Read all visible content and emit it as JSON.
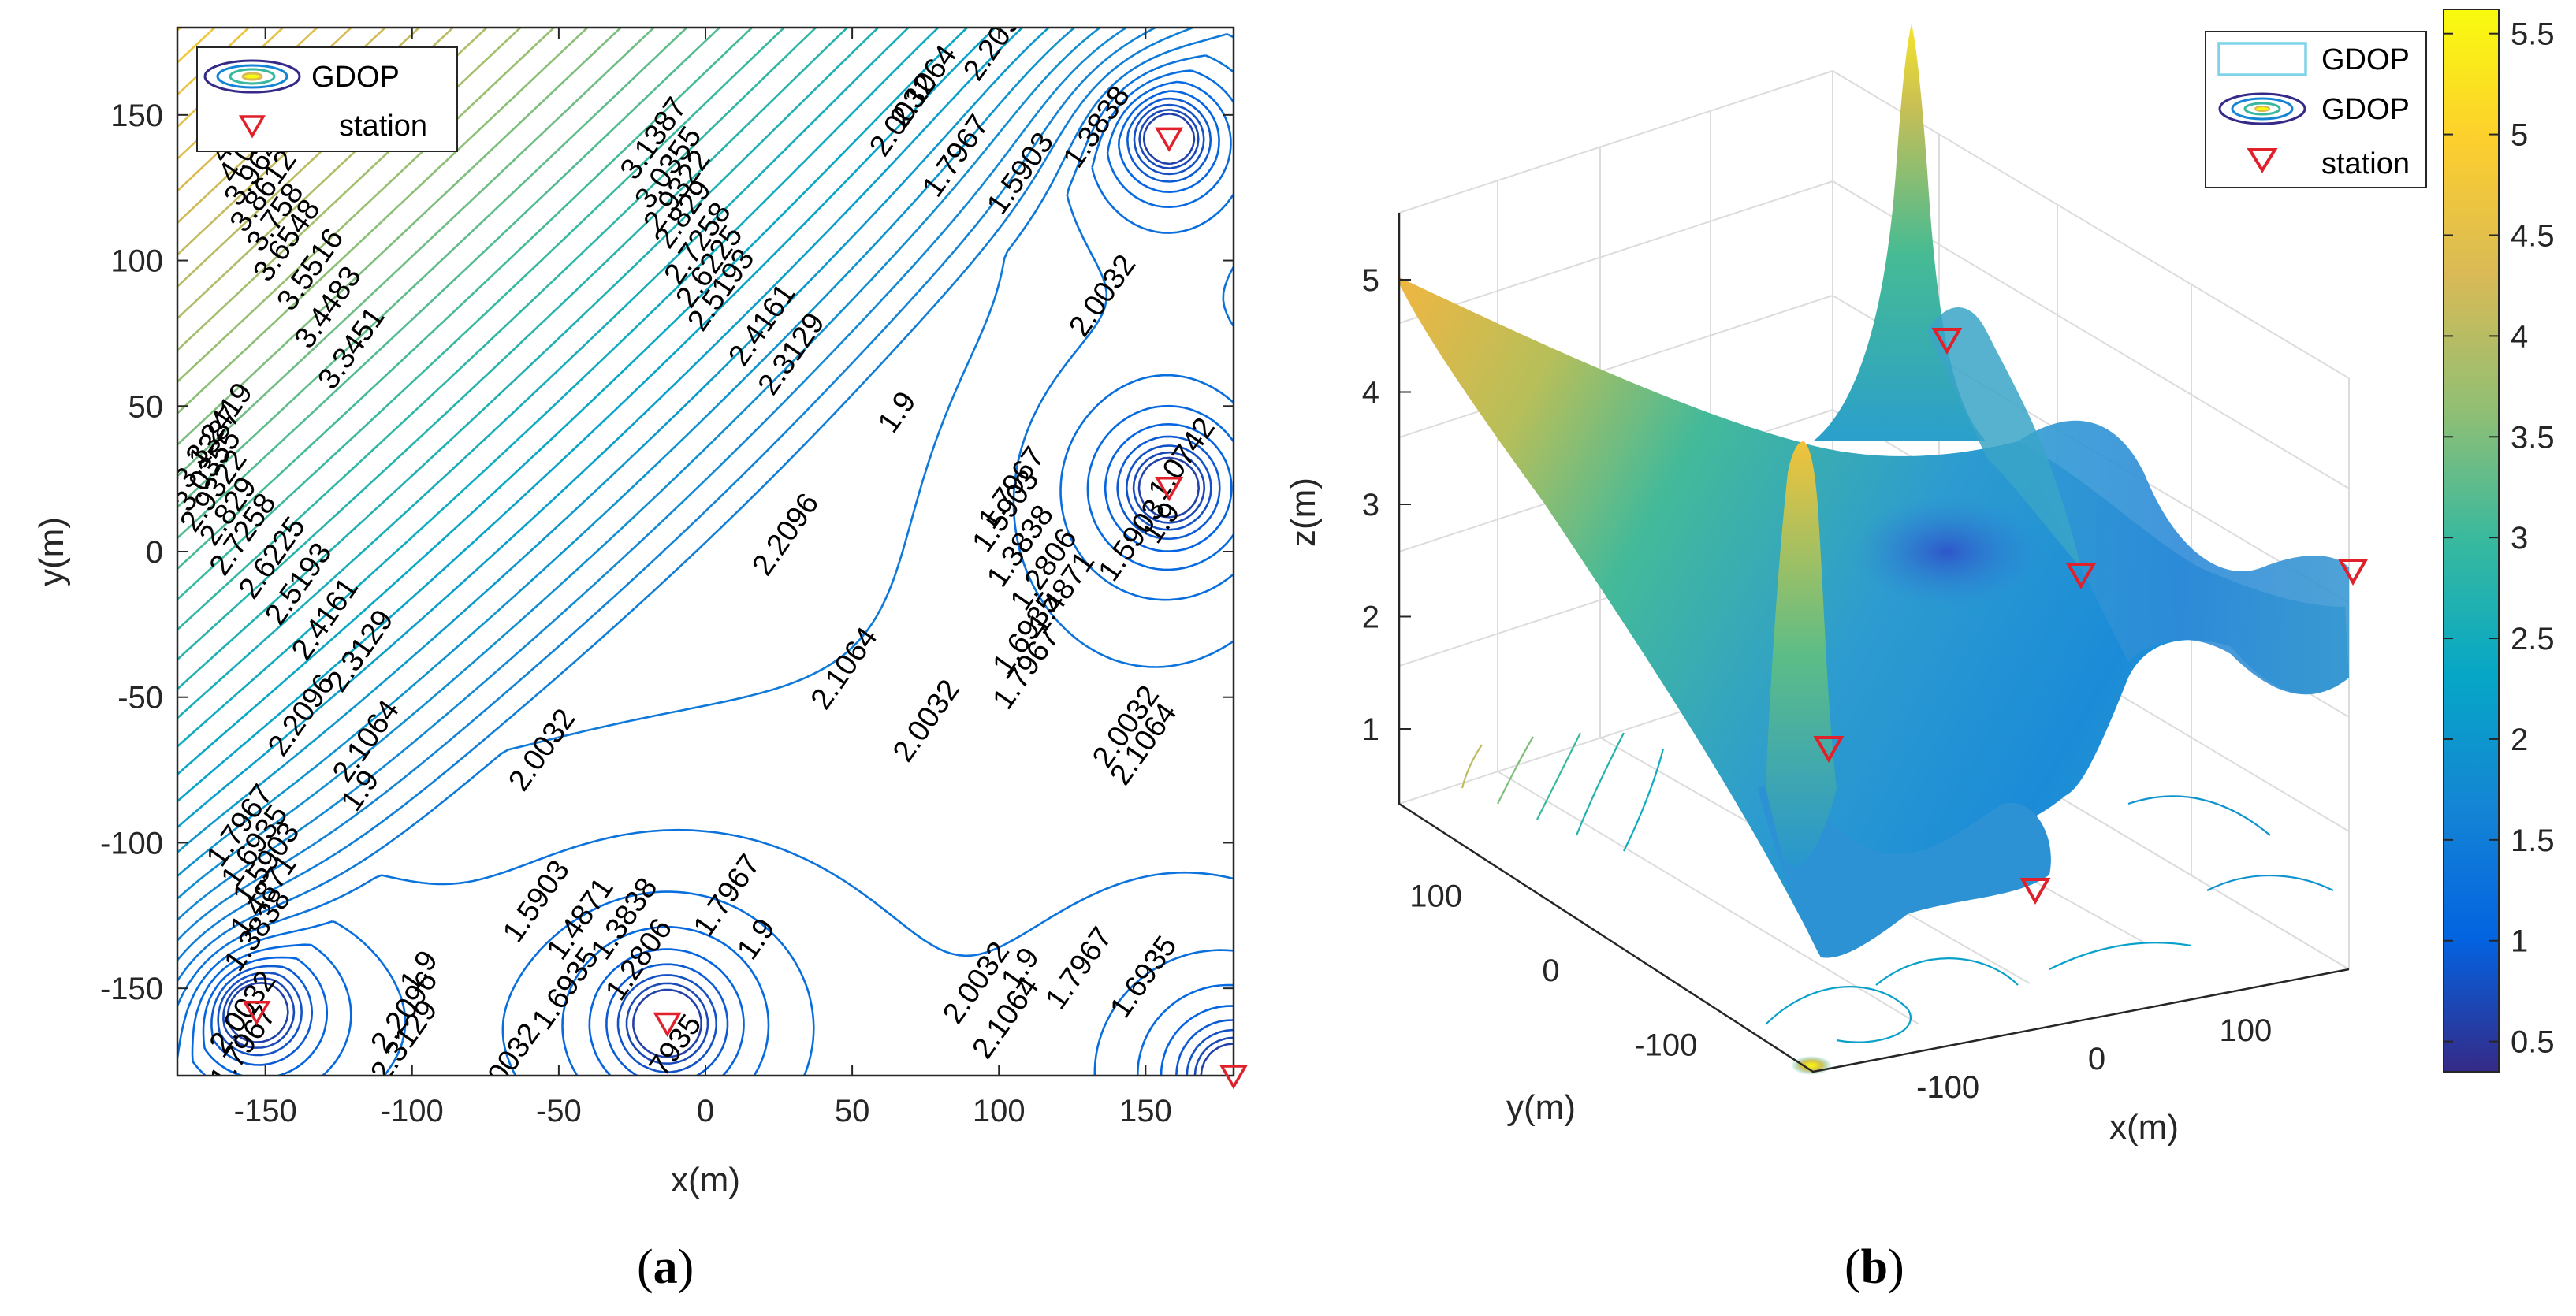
{
  "chart_data": [
    {
      "panel": "a",
      "type": "contour",
      "caption_prefix": "(",
      "caption_letter": "a",
      "caption_suffix": ")",
      "xlabel": "x(m)",
      "ylabel": "y(m)",
      "xlim": [
        -180,
        180
      ],
      "ylim": [
        -180,
        180
      ],
      "xticks": [
        -150,
        -100,
        -50,
        0,
        50,
        100,
        150
      ],
      "yticks": [
        -150,
        -100,
        -50,
        0,
        50,
        100,
        150
      ],
      "legend": {
        "placement": "top-left",
        "entries": [
          {
            "label": "GDOP",
            "marker": "contour"
          },
          {
            "label": "station",
            "marker": "triangle-down",
            "color": "#e0202a"
          }
        ]
      },
      "stations": [
        {
          "x": 158,
          "y": 142
        },
        {
          "x": 158,
          "y": 22
        },
        {
          "x": -153,
          "y": -158
        },
        {
          "x": -13,
          "y": -162
        },
        {
          "x": 180,
          "y": -180
        }
      ],
      "contour_labels": [
        {
          "text": "1.3838",
          "x": -150,
          "y": -132
        },
        {
          "text": "1.4871",
          "x": -148,
          "y": -120
        },
        {
          "text": "1.5903",
          "x": -147,
          "y": -109
        },
        {
          "text": "1.6935",
          "x": -151,
          "y": -103
        },
        {
          "text": "1.7967",
          "x": -156,
          "y": -96
        },
        {
          "text": "1.9",
          "x": -115,
          "y": -84
        },
        {
          "text": "2.0032",
          "x": -53,
          "y": -70
        },
        {
          "text": "2.1064",
          "x": -113,
          "y": -67
        },
        {
          "text": "2.2096",
          "x": -135,
          "y": -58
        },
        {
          "text": "2.3129",
          "x": -115,
          "y": -36
        },
        {
          "text": "2.4161",
          "x": -127,
          "y": -25
        },
        {
          "text": "2.5193",
          "x": -136,
          "y": -13
        },
        {
          "text": "2.6225",
          "x": -145,
          "y": -4
        },
        {
          "text": "2.7258",
          "x": -155,
          "y": 4
        },
        {
          "text": "2.829",
          "x": -160,
          "y": 12
        },
        {
          "text": "2.9322",
          "x": -165,
          "y": 19
        },
        {
          "text": "3.0355",
          "x": -167,
          "y": 26
        },
        {
          "text": "3.1387",
          "x": -167,
          "y": 34
        },
        {
          "text": "3.2419",
          "x": -163,
          "y": 42
        },
        {
          "text": "3.3451",
          "x": -118,
          "y": 68
        },
        {
          "text": "3.4483",
          "x": -126,
          "y": 82
        },
        {
          "text": "3.5516",
          "x": -132,
          "y": 95
        },
        {
          "text": "3.6548",
          "x": -140,
          "y": 105
        },
        {
          "text": "3.758",
          "x": -144,
          "y": 113
        },
        {
          "text": "3.8612",
          "x": -148,
          "y": 122
        },
        {
          "text": "3.9645",
          "x": -150,
          "y": 131
        },
        {
          "text": "4.0677",
          "x": -152,
          "y": 139
        },
        {
          "text": "4.1709",
          "x": -155,
          "y": 146
        },
        {
          "text": "3.1387",
          "x": -15,
          "y": 140
        },
        {
          "text": "3.0355",
          "x": -10,
          "y": 130
        },
        {
          "text": "2.9322",
          "x": -7,
          "y": 122
        },
        {
          "text": "2.829",
          "x": -5,
          "y": 114
        },
        {
          "text": "2.7258",
          "x": 0,
          "y": 104
        },
        {
          "text": "2.6225",
          "x": 4,
          "y": 96
        },
        {
          "text": "2.5193",
          "x": 8,
          "y": 88
        },
        {
          "text": "2.4161",
          "x": 22,
          "y": 76
        },
        {
          "text": "2.3129",
          "x": 32,
          "y": 66
        },
        {
          "text": "2.2096",
          "x": 30,
          "y": 4
        },
        {
          "text": "2.1064",
          "x": 50,
          "y": -42
        },
        {
          "text": "2.0032",
          "x": 78,
          "y": -60
        },
        {
          "text": "1.9",
          "x": 68,
          "y": 46
        },
        {
          "text": "2.0032",
          "x": 70,
          "y": 148
        },
        {
          "text": "2.1064",
          "x": 77,
          "y": 158
        },
        {
          "text": "2.2096",
          "x": 102,
          "y": 174
        },
        {
          "text": "1.7967",
          "x": 88,
          "y": 134
        },
        {
          "text": "1.5903",
          "x": 110,
          "y": 128
        },
        {
          "text": "1.3838",
          "x": 136,
          "y": 144
        },
        {
          "text": "2.0032",
          "x": 138,
          "y": 86
        },
        {
          "text": "1.7967",
          "x": 107,
          "y": 20
        },
        {
          "text": "1.5903",
          "x": 105,
          "y": 12
        },
        {
          "text": "1.3838",
          "x": 110,
          "y": 0
        },
        {
          "text": "1.2806",
          "x": 118,
          "y": -8
        },
        {
          "text": "1.4871",
          "x": 124,
          "y": -16
        },
        {
          "text": "1.5903",
          "x": 148,
          "y": 2
        },
        {
          "text": "1.6935",
          "x": 112,
          "y": -30
        },
        {
          "text": "1.7967",
          "x": 112,
          "y": -42
        },
        {
          "text": "2.0032",
          "x": 146,
          "y": -62
        },
        {
          "text": "2.1064",
          "x": 152,
          "y": -68
        },
        {
          "text": "1.9",
          "x": 158,
          "y": 8
        },
        {
          "text": "1.0742",
          "x": 165,
          "y": 30
        },
        {
          "text": "1.9",
          "x": -95,
          "y": -146
        },
        {
          "text": "2.2096",
          "x": -100,
          "y": -160
        },
        {
          "text": "2.3129",
          "x": -100,
          "y": -170
        },
        {
          "text": "2.0032",
          "x": -65,
          "y": -178
        },
        {
          "text": "1.7967",
          "x": -155,
          "y": -172
        },
        {
          "text": "2.0032",
          "x": -155,
          "y": -160
        },
        {
          "text": "1.5903",
          "x": -55,
          "y": -122
        },
        {
          "text": "1.4871",
          "x": -40,
          "y": -128
        },
        {
          "text": "1.3838",
          "x": -25,
          "y": -128
        },
        {
          "text": "1.2806",
          "x": -20,
          "y": -142
        },
        {
          "text": "1.6935",
          "x": -45,
          "y": -152
        },
        {
          "text": "1.7967",
          "x": 10,
          "y": -120
        },
        {
          "text": "1.9",
          "x": 20,
          "y": -135
        },
        {
          "text": "1.7935",
          "x": -10,
          "y": -175
        },
        {
          "text": "1.9",
          "x": 110,
          "y": -145
        },
        {
          "text": "2.0032",
          "x": 95,
          "y": -150
        },
        {
          "text": "2.1064",
          "x": 105,
          "y": -162
        },
        {
          "text": "1.7967",
          "x": 130,
          "y": -145
        },
        {
          "text": "1.6935",
          "x": 152,
          "y": -148
        }
      ]
    },
    {
      "panel": "b",
      "type": "surface",
      "caption_prefix": "(",
      "caption_letter": "b",
      "caption_suffix": ")",
      "xlabel": "x(m)",
      "ylabel": "y(m)",
      "zlabel": "z(m)",
      "zticks": [
        1,
        2,
        3,
        4,
        5
      ],
      "xticks": [
        -100,
        0,
        100
      ],
      "yticks": [
        -100,
        0,
        100
      ],
      "legend": {
        "placement": "top-right",
        "entries": [
          {
            "label": "GDOP",
            "marker": "surface"
          },
          {
            "label": "GDOP",
            "marker": "contour"
          },
          {
            "label": "station",
            "marker": "triangle-down",
            "color": "#e0202a"
          }
        ]
      },
      "colorbar": {
        "colormap": "parula",
        "ticks": [
          0.5,
          1,
          1.5,
          2,
          2.5,
          3,
          3.5,
          4,
          4.5,
          5,
          5.5
        ],
        "tick_labels": [
          "0.5",
          "1",
          "1.5",
          "2",
          "2.5",
          "3",
          "3.5",
          "4",
          "4.5",
          "5",
          "5.5"
        ],
        "range": [
          0.35,
          5.62
        ]
      }
    }
  ]
}
